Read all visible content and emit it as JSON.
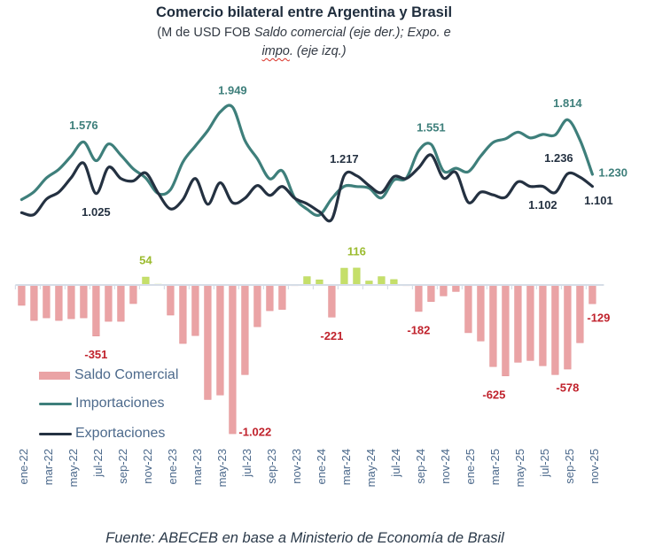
{
  "title": "Comercio bilateral entre Argentina y Brasil",
  "subtitle": {
    "prefix": "(M de USD FOB ",
    "italic_line1": "Saldo comercial (eje der.); Expo. e",
    "line2_underlined": "impo",
    "line2_rest": ". (eje izq.)"
  },
  "legend": [
    {
      "label": "Saldo Comercial",
      "kind": "bar"
    },
    {
      "label": "Importaciones",
      "kind": "line"
    },
    {
      "label": "Exportaciones",
      "kind": "line"
    }
  ],
  "source": "Fuente: ABECEB en base a Ministerio de Economía de Brasil",
  "colors": {
    "importaciones": "#3e7f7b",
    "exportaciones": "#243141",
    "saldo_negative": "#eaa3a5",
    "saldo_positive": "#c5df6a",
    "label_negative": "#c0222c",
    "label_positive": "#9bbb2e",
    "axis": "#d6dde7",
    "tick_text": "#4d6a8c"
  },
  "chart_data": {
    "type": "bar",
    "title": "Comercio bilateral entre Argentina y Brasil",
    "xlabel": "",
    "ylabel_left": "Expo. e impo. (M de USD FOB)",
    "ylabel_right": "Saldo comercial (M de USD FOB)",
    "ylim_left": [
      0,
      2000
    ],
    "ylim_right": [
      -1100,
      150
    ],
    "grid": false,
    "legend_position": "left-middle",
    "categories": [
      "ene-22",
      "feb-22",
      "mar-22",
      "abr-22",
      "may-22",
      "jun-22",
      "jul-22",
      "ago-22",
      "sep-22",
      "oct-22",
      "nov-22",
      "dic-22",
      "ene-23",
      "feb-23",
      "mar-23",
      "abr-23",
      "may-23",
      "jun-23",
      "jul-23",
      "ago-23",
      "sep-23",
      "oct-23",
      "nov-23",
      "dic-23",
      "ene-24",
      "feb-24",
      "mar-24",
      "abr-24",
      "may-24",
      "jun-24",
      "jul-24",
      "ago-24",
      "sep-24",
      "oct-24",
      "nov-24",
      "dic-24",
      "ene-25",
      "feb-25",
      "mar-25",
      "abr-25",
      "may-25",
      "jun-25",
      "jul-25",
      "ago-25",
      "sep-25",
      "oct-25",
      "nov-25"
    ],
    "x_tick_labels": [
      "ene-22",
      "mar-22",
      "may-22",
      "jul-22",
      "sep-22",
      "nov-22",
      "ene-23",
      "mar-23",
      "may-23",
      "jul-23",
      "sep-23",
      "nov-23",
      "ene-24",
      "mar-24",
      "may-24",
      "jul-24",
      "sep-24",
      "nov-24",
      "ene-25",
      "mar-25",
      "may-25",
      "jul-25",
      "sep-25",
      "nov-25"
    ],
    "series": [
      {
        "name": "Saldo Comercial",
        "type": "bar",
        "axis": "right",
        "values": [
          -140,
          -244,
          -226,
          -244,
          -232,
          -226,
          -351,
          -250,
          -250,
          -128,
          54,
          5,
          -207,
          -402,
          -348,
          -787,
          -756,
          -1022,
          -616,
          -287,
          -177,
          -168,
          -5,
          57,
          35,
          -221,
          115,
          116,
          27,
          57,
          37,
          -5,
          -182,
          -114,
          -75,
          -45,
          -328,
          -385,
          -561,
          -625,
          -531,
          -519,
          -555,
          -616,
          -578,
          -397,
          -129
        ]
      },
      {
        "name": "Importaciones",
        "type": "line",
        "axis": "left",
        "values": [
          960,
          1044,
          1191,
          1284,
          1427,
          1576,
          1376,
          1555,
          1435,
          1288,
          1191,
          1025,
          1067,
          1362,
          1533,
          1697,
          1896,
          1949,
          1591,
          1397,
          1182,
          1268,
          980,
          858,
          795,
          971,
          1102,
          1099,
          1083,
          978,
          1168,
          1190,
          1482,
          1551,
          1265,
          1295,
          1258,
          1425,
          1571,
          1610,
          1681,
          1619,
          1657,
          1651,
          1814,
          1597,
          1230
        ]
      },
      {
        "name": "Exportaciones",
        "type": "line",
        "axis": "left",
        "values": [
          820,
          800,
          965,
          1040,
          1195,
          1350,
          1025,
          1305,
          1185,
          1160,
          1245,
          1030,
          860,
          960,
          1185,
          910,
          1140,
          927,
          975,
          1110,
          1005,
          1100,
          975,
          915,
          830,
          750,
          1217,
          1215,
          1110,
          1035,
          1205,
          1185,
          1300,
          1437,
          1190,
          1250,
          930,
          1040,
          1010,
          985,
          1150,
          1100,
          1102,
          1035,
          1236,
          1200,
          1101
        ]
      }
    ],
    "data_labels": [
      {
        "series": "Importaciones",
        "index": 5,
        "text": "1.576",
        "placement": "above"
      },
      {
        "series": "Importaciones",
        "index": 17,
        "text": "1.949",
        "placement": "above"
      },
      {
        "series": "Importaciones",
        "index": 33,
        "text": "1.551",
        "placement": "above"
      },
      {
        "series": "Importaciones",
        "index": 44,
        "text": "1.814",
        "placement": "above"
      },
      {
        "series": "Importaciones",
        "index": 46,
        "text": "1.230",
        "placement": "right"
      },
      {
        "series": "Exportaciones",
        "index": 6,
        "text": "1.025",
        "placement": "below"
      },
      {
        "series": "Exportaciones",
        "index": 26,
        "text": "1.217",
        "placement": "above"
      },
      {
        "series": "Exportaciones",
        "index": 44,
        "text": "1.236",
        "placement": "above-left"
      },
      {
        "series": "Exportaciones",
        "index": 42,
        "text": "1.102",
        "placement": "below"
      },
      {
        "series": "Exportaciones",
        "index": 46,
        "text": "1.101",
        "placement": "below-right"
      },
      {
        "series": "Saldo Comercial",
        "index": 10,
        "text": "54",
        "placement": "above"
      },
      {
        "series": "Saldo Comercial",
        "index": 27,
        "text": "116",
        "placement": "above"
      },
      {
        "series": "Saldo Comercial",
        "index": 6,
        "text": "-351",
        "placement": "below"
      },
      {
        "series": "Saldo Comercial",
        "index": 17,
        "text": "-1.022",
        "placement": "right"
      },
      {
        "series": "Saldo Comercial",
        "index": 25,
        "text": "-221",
        "placement": "below"
      },
      {
        "series": "Saldo Comercial",
        "index": 32,
        "text": "-182",
        "placement": "below"
      },
      {
        "series": "Saldo Comercial",
        "index": 39,
        "text": "-625",
        "placement": "below-left"
      },
      {
        "series": "Saldo Comercial",
        "index": 44,
        "text": "-578",
        "placement": "below"
      },
      {
        "series": "Saldo Comercial",
        "index": 46,
        "text": "-129",
        "placement": "below-right"
      }
    ]
  }
}
